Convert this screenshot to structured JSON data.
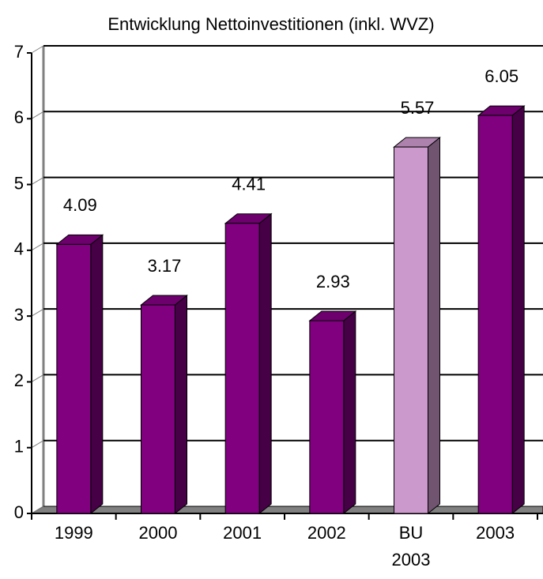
{
  "chart_data": {
    "type": "bar3d",
    "title": "Entwicklung Nettoinvestitionen (inkl. WVZ)",
    "categories": [
      "1999",
      "2000",
      "2001",
      "2002",
      "BU 2003",
      "2003"
    ],
    "values": [
      4.09,
      3.17,
      4.41,
      2.93,
      5.57,
      6.05
    ],
    "colors": [
      "#800080",
      "#800080",
      "#800080",
      "#800080",
      "#cc99cc",
      "#800080"
    ],
    "ylim": [
      0,
      7
    ],
    "yticks": [
      0,
      1,
      2,
      3,
      4,
      5,
      6,
      7
    ],
    "grid": true
  }
}
